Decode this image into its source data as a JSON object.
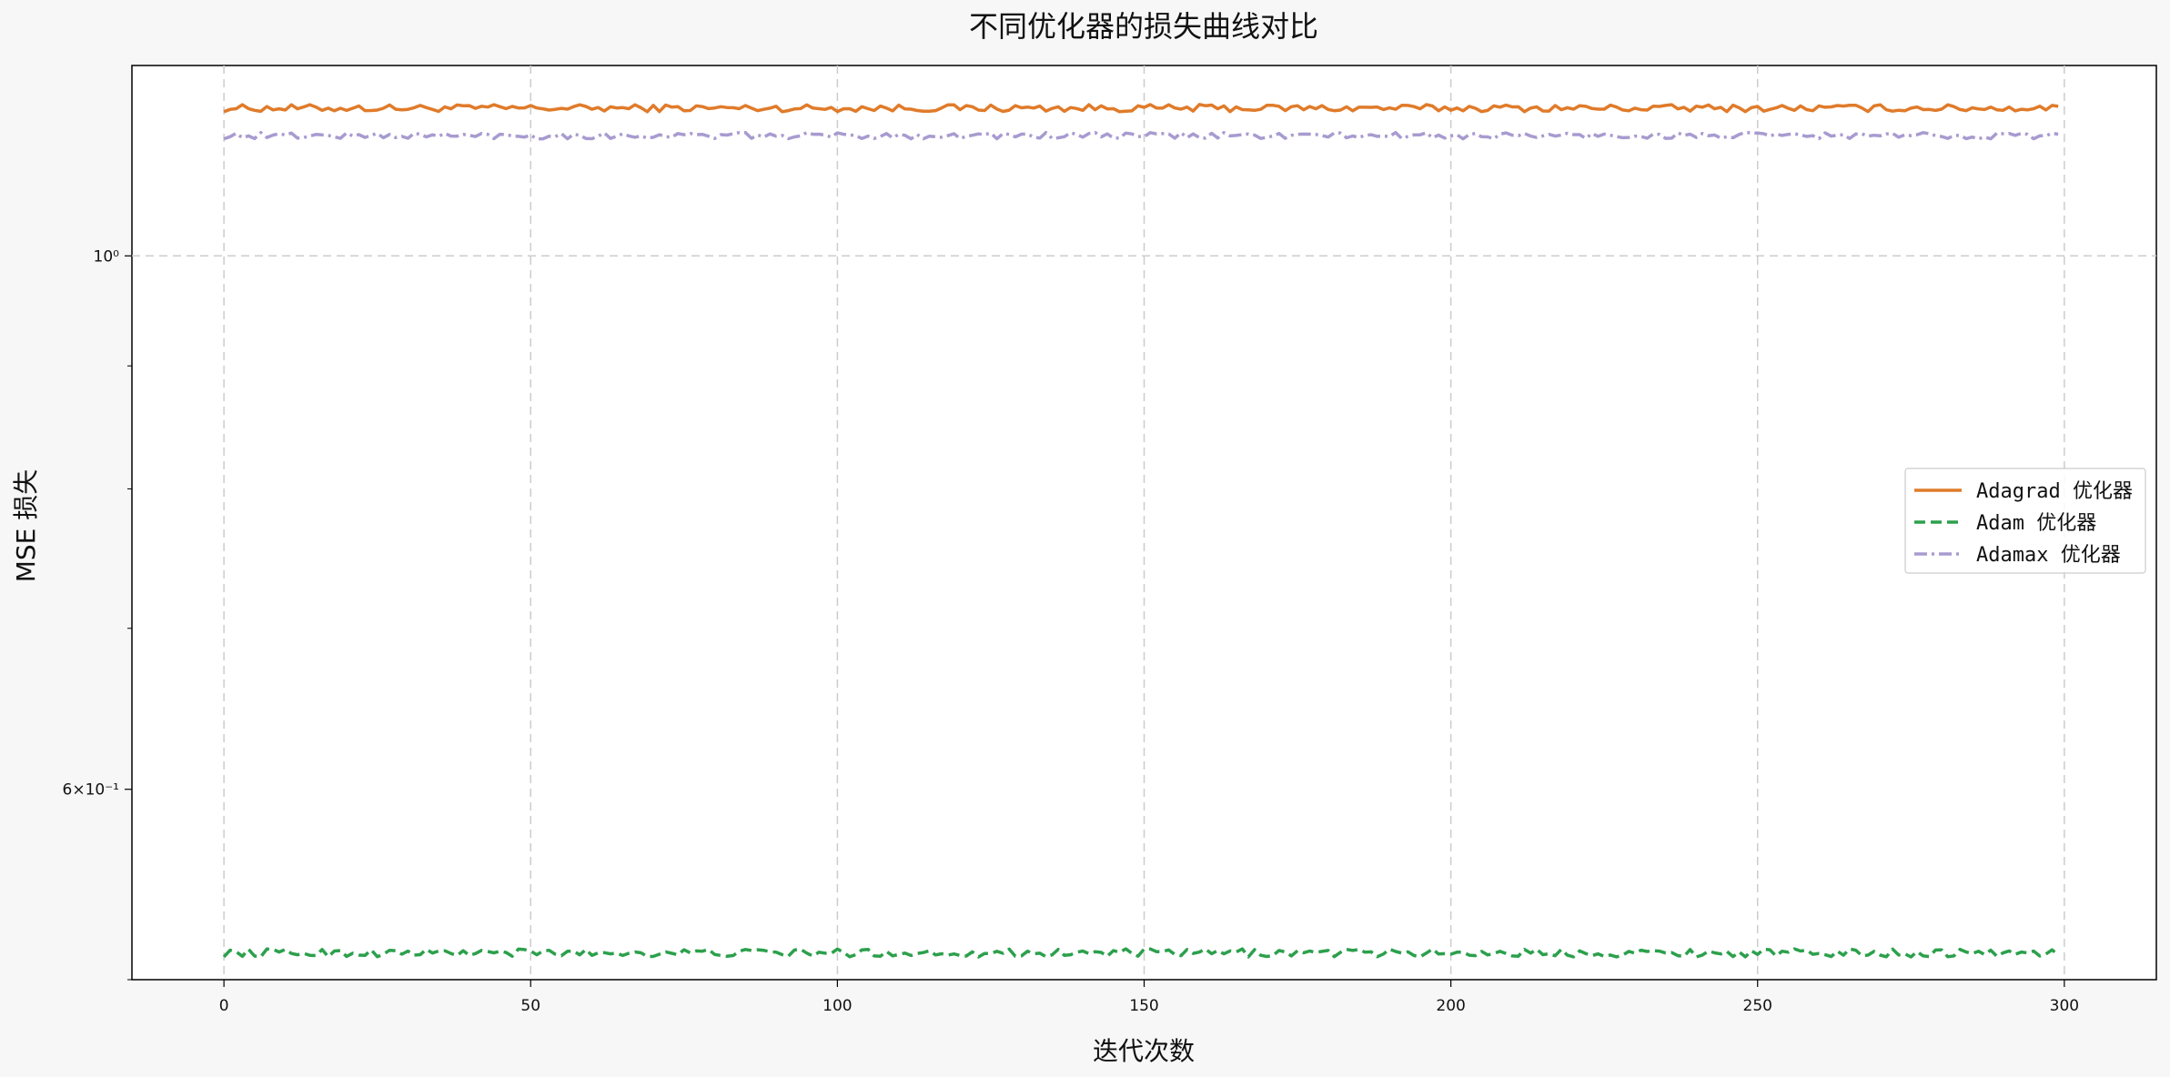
{
  "chart_data": {
    "type": "line",
    "title": "不同优化器的损失曲线对比",
    "xlabel": "迭代次数",
    "ylabel": "MSE 损失",
    "xlim": [
      -15,
      315
    ],
    "ylim": [
      0.5,
      1.2
    ],
    "yscale": "log",
    "grid": true,
    "legend_position": "right",
    "x_ticks": [
      0,
      50,
      100,
      150,
      200,
      250,
      300
    ],
    "x_tick_labels": [
      "0",
      "50",
      "100",
      "150",
      "200",
      "250",
      "300"
    ],
    "y_major_ticks": [
      {
        "value": 1.0,
        "label": "10⁰"
      },
      {
        "value": 0.6,
        "label": "6×10⁻¹"
      }
    ],
    "y_minor_ticks": [
      0.9,
      0.8,
      0.7,
      0.5
    ],
    "x_start": 0,
    "x_end": 299,
    "series": [
      {
        "name": "Adagrad 优化器",
        "base": 1.152,
        "amplitude": 0.004,
        "color": "#e07b2a",
        "dash": "solid"
      },
      {
        "name": "Adam 优化器",
        "base": 0.513,
        "amplitude": 0.002,
        "color": "#2ca04c",
        "dash": "dashed"
      },
      {
        "name": "Adamax 优化器",
        "base": 1.122,
        "amplitude": 0.0035,
        "color": "#a89bd0",
        "dash": "dashdot"
      }
    ]
  }
}
